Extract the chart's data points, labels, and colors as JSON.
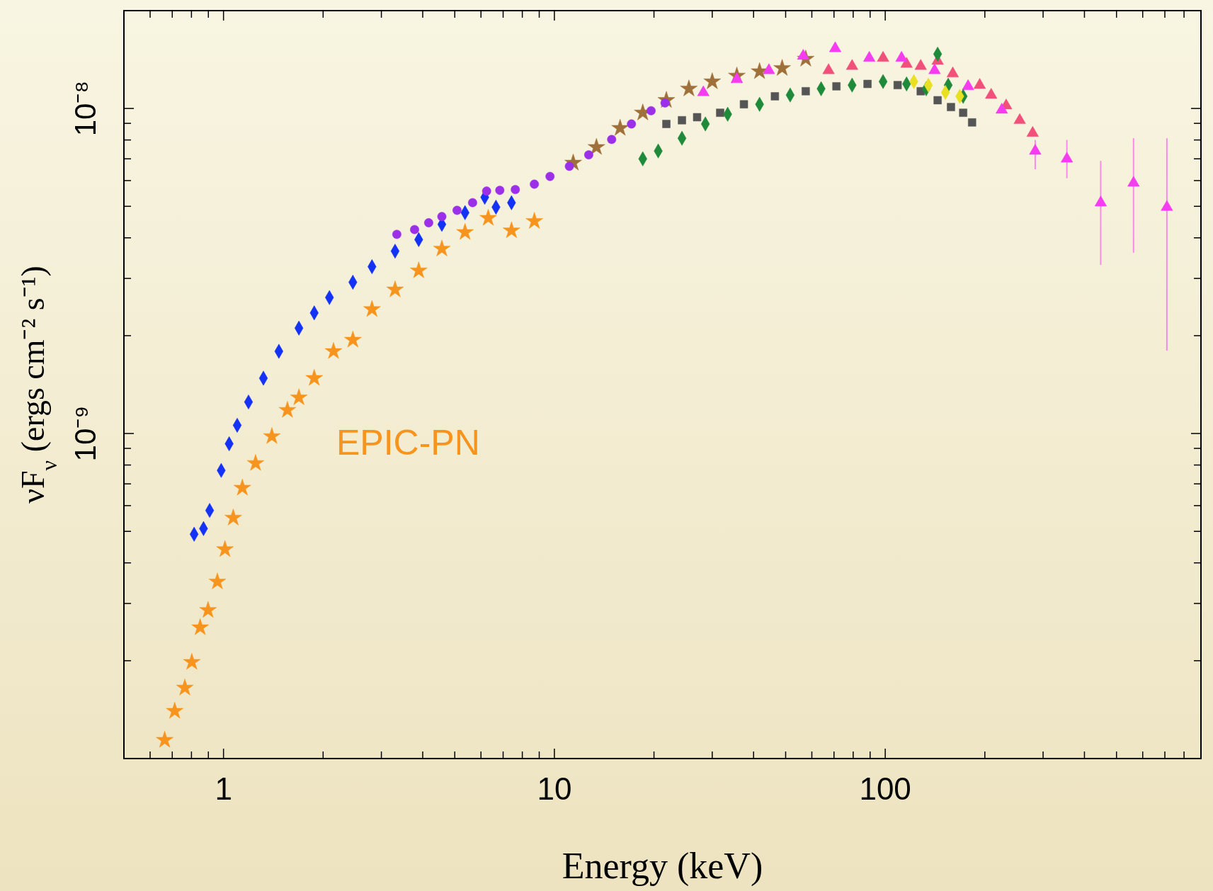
{
  "chart_data": {
    "type": "scatter",
    "xlabel": "Energy (keV)",
    "ylabel": "νF$_{ν}$  (ergs cm⁻² s⁻¹)",
    "log": "xy",
    "grid": false,
    "xlim": [
      0.5,
      900
    ],
    "ylim": [
      1e-10,
      2e-08
    ],
    "xticks": [
      {
        "value": 0.6,
        "label": null
      },
      {
        "value": 0.7,
        "label": null
      },
      {
        "value": 0.8,
        "label": null
      },
      {
        "value": 0.9,
        "label": null
      },
      1,
      {
        "value": 2,
        "label": null
      },
      {
        "value": 3,
        "label": null
      },
      {
        "value": 4,
        "label": null
      },
      {
        "value": 5,
        "label": null
      },
      {
        "value": 6,
        "label": null
      },
      {
        "value": 7,
        "label": null
      },
      {
        "value": 8,
        "label": null
      },
      {
        "value": 9,
        "label": null
      },
      10,
      {
        "value": 20,
        "label": null
      },
      {
        "value": 30,
        "label": null
      },
      {
        "value": 40,
        "label": null
      },
      {
        "value": 50,
        "label": null
      },
      {
        "value": 60,
        "label": null
      },
      {
        "value": 70,
        "label": null
      },
      {
        "value": 80,
        "label": null
      },
      {
        "value": 90,
        "label": null
      },
      100,
      {
        "value": 200,
        "label": null
      },
      {
        "value": 300,
        "label": null
      },
      {
        "value": 400,
        "label": null
      },
      {
        "value": 500,
        "label": null
      },
      {
        "value": 600,
        "label": null
      },
      {
        "value": 700,
        "label": null
      },
      {
        "value": 800,
        "label": null
      },
      {
        "value": 900,
        "label": null
      }
    ],
    "yticks": [
      {
        "value": 2e-10,
        "label": null
      },
      {
        "value": 3e-10,
        "label": null
      },
      {
        "value": 4e-10,
        "label": null
      },
      {
        "value": 5e-10,
        "label": null
      },
      {
        "value": 6e-10,
        "label": null
      },
      {
        "value": 7e-10,
        "label": null
      },
      {
        "value": 8e-10,
        "label": null
      },
      {
        "value": 9e-10,
        "label": null
      },
      {
        "value": 1e-09,
        "label": "10⁻⁹"
      },
      {
        "value": 2e-09,
        "label": null
      },
      {
        "value": 3e-09,
        "label": null
      },
      {
        "value": 4e-09,
        "label": null
      },
      {
        "value": 5e-09,
        "label": null
      },
      {
        "value": 6e-09,
        "label": null
      },
      {
        "value": 7e-09,
        "label": null
      },
      {
        "value": 8e-09,
        "label": null
      },
      {
        "value": 9e-09,
        "label": null
      },
      {
        "value": 1e-08,
        "label": "10⁻⁸"
      },
      {
        "value": 2e-08,
        "label": null
      }
    ],
    "series": [
      {
        "name": "EPIC-PN",
        "color": "#f7941d",
        "marker": "star",
        "x": [
          0.664,
          0.712,
          0.764,
          0.802,
          0.85,
          0.898,
          0.958,
          1.01,
          1.07,
          1.14,
          1.25,
          1.4,
          1.56,
          1.69,
          1.88,
          2.15,
          2.46,
          2.81,
          3.3,
          3.89,
          4.57,
          5.37,
          6.31,
          7.42,
          8.7
        ],
        "values": [
          1.14e-10,
          1.4e-10,
          1.65e-10,
          1.98e-10,
          2.53e-10,
          2.86e-10,
          3.5e-10,
          4.4e-10,
          5.5e-10,
          6.8e-10,
          8.1e-10,
          9.8e-10,
          1.18e-09,
          1.29e-09,
          1.48e-09,
          1.79e-09,
          1.94e-09,
          2.41e-09,
          2.77e-09,
          3.17e-09,
          3.7e-09,
          4.16e-09,
          4.6e-09,
          4.21e-09,
          4.5e-09
        ]
      },
      {
        "color": "#1432f5",
        "marker": "diamond",
        "x": [
          0.815,
          0.87,
          0.908,
          0.984,
          1.04,
          1.1,
          1.19,
          1.32,
          1.47,
          1.69,
          1.88,
          2.09,
          2.46,
          2.81,
          3.3,
          3.89,
          4.57,
          5.37,
          6.16,
          6.66,
          7.42
        ],
        "values": [
          4.9e-10,
          5.1e-10,
          5.8e-10,
          7.7e-10,
          9.3e-10,
          1.06e-09,
          1.25e-09,
          1.48e-09,
          1.79e-09,
          2.11e-09,
          2.35e-09,
          2.62e-09,
          2.92e-09,
          3.26e-09,
          3.64e-09,
          3.95e-09,
          4.4e-09,
          4.78e-09,
          5.33e-09,
          4.97e-09,
          5.13e-09
        ]
      },
      {
        "color": "#f0507a",
        "marker": "triangle",
        "x": [
          67.4,
          79.4,
          98.5,
          116,
          128,
          144,
          160,
          193,
          209,
          232,
          255,
          279
        ],
        "values": [
          1.31e-08,
          1.35e-08,
          1.43e-08,
          1.37e-08,
          1.35e-08,
          1.4e-08,
          1.28e-08,
          1.18e-08,
          1.1e-08,
          1.02e-08,
          9.2e-09,
          8.4e-09
        ]
      },
      {
        "color": "#555555",
        "marker": "square",
        "x": [
          21.8,
          24.3,
          27,
          31.7,
          37.4,
          46.4,
          57.5,
          71.2,
          88.4,
          109,
          128,
          144,
          158,
          172,
          183
        ],
        "values": [
          8.96e-09,
          9.2e-09,
          9.4e-09,
          9.7e-09,
          1.03e-08,
          1.09e-08,
          1.13e-08,
          1.17e-08,
          1.19e-08,
          1.18e-08,
          1.13e-08,
          1.06e-08,
          1.01e-08,
          9.7e-09,
          9.06e-09
        ]
      },
      {
        "color": "#a0703a",
        "marker": "star",
        "x": [
          11.4,
          13.4,
          15.8,
          18.5,
          21.8,
          25.5,
          30,
          35.6,
          41.7,
          48.8,
          57.5
        ],
        "values": [
          6.8e-09,
          7.6e-09,
          8.7e-09,
          9.7e-09,
          1.06e-08,
          1.15e-08,
          1.21e-08,
          1.26e-08,
          1.3e-08,
          1.33e-08,
          1.42e-08
        ]
      },
      {
        "color": "#9b30e8",
        "marker": "circle",
        "x": [
          3.34,
          3.78,
          4.17,
          4.57,
          5.08,
          5.66,
          6.24,
          6.84,
          7.62,
          8.7,
          9.7,
          11.1,
          12.7,
          14.9,
          17.1,
          19.6,
          21.6
        ],
        "values": [
          4.1e-09,
          4.24e-09,
          4.45e-09,
          4.65e-09,
          4.86e-09,
          5.13e-09,
          5.57e-09,
          5.6e-09,
          5.63e-09,
          5.85e-09,
          6.18e-09,
          6.64e-09,
          7.2e-09,
          8.03e-09,
          8.96e-09,
          9.84e-09,
          1.04e-08
        ]
      },
      {
        "color": "#f53cf0",
        "marker": "triangle",
        "x": [
          28.2,
          35.6,
          44.5,
          56.5,
          70.6,
          89.5,
          112,
          141,
          178,
          225,
          284,
          354,
          448,
          563,
          710
        ],
        "values": [
          1.12e-08,
          1.23e-08,
          1.31e-08,
          1.45e-08,
          1.53e-08,
          1.43e-08,
          1.43e-08,
          1.31e-08,
          1.17e-08,
          9.9e-09,
          7.4e-09,
          7e-09,
          5.13e-09,
          5.9e-09,
          4.97e-09
        ],
        "errors": [
          null,
          null,
          null,
          null,
          null,
          null,
          null,
          null,
          null,
          null,
          [
            6.5e-09,
            8e-09
          ],
          [
            6.1e-09,
            8e-09
          ],
          [
            3.3e-09,
            6.9e-09
          ],
          [
            3.6e-09,
            8.1e-09
          ],
          [
            1.8e-09,
            8.1e-09
          ]
        ]
      },
      {
        "color": "#1e8a3a",
        "marker": "diamond",
        "x": [
          18.5,
          20.6,
          24.3,
          28.6,
          33.4,
          41.7,
          51.6,
          64,
          79.4,
          98.5,
          116,
          133,
          144,
          155,
          172
        ],
        "values": [
          7e-09,
          7.4e-09,
          8.1e-09,
          8.96e-09,
          9.6e-09,
          1.03e-08,
          1.1e-08,
          1.15e-08,
          1.18e-08,
          1.21e-08,
          1.19e-08,
          1.15e-08,
          1.47e-08,
          1.18e-08,
          1.09e-08
        ]
      },
      {
        "color": "#e8e020",
        "marker": "diamond",
        "x": [
          122,
          135,
          152,
          168
        ],
        "values": [
          1.21e-08,
          1.18e-08,
          1.12e-08,
          1.09e-08
        ]
      }
    ]
  }
}
